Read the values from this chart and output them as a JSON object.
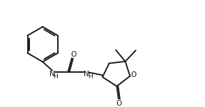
{
  "background_color": "#ffffff",
  "line_color": "#1a1a1a",
  "line_width": 1.4,
  "text_color": "#1a1a1a",
  "font_size": 7.5,
  "font_size_h": 6.5,
  "fig_width": 2.94,
  "fig_height": 1.53,
  "dpi": 100,
  "xlim": [
    0,
    10
  ],
  "ylim": [
    0,
    5.2
  ]
}
